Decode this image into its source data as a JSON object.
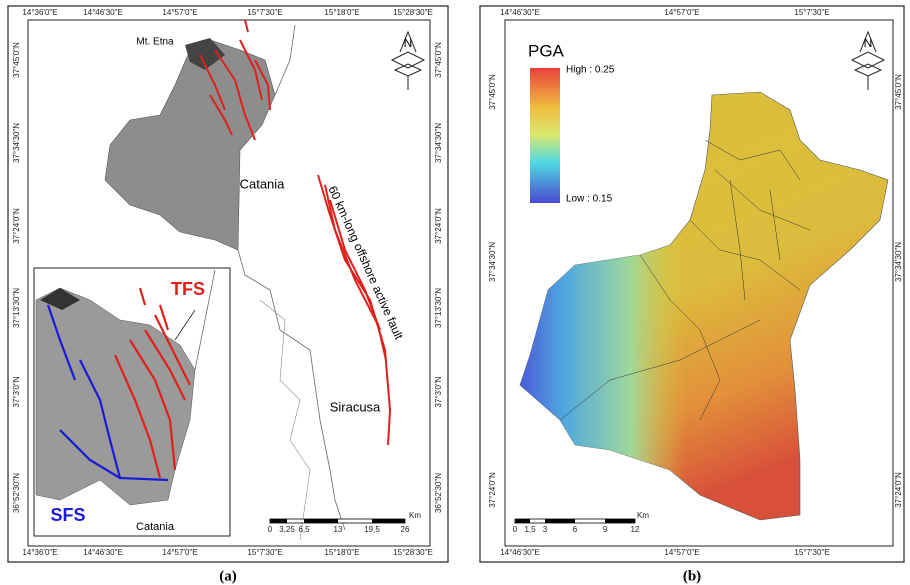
{
  "panels": [
    {
      "caption": "(a)",
      "lon_labels": [
        "14°36'0\"E",
        "14°46'30\"E",
        "14°57'0\"E",
        "15°7'30\"E",
        "15°18'0\"E",
        "15°28'30\"E"
      ],
      "lat_labels": [
        "37°45'0\"N",
        "37°34'30\"N",
        "37°24'0\"N",
        "37°13'30\"N",
        "37°3'0\"N",
        "36°52'30\"N"
      ],
      "labels": {
        "etna": "Mt. Etna",
        "catania": "Catania",
        "fault": "60 km-long offshore active fault",
        "siracusa": "Siracusa",
        "tfs": "TFS",
        "sfs": "SFS",
        "inset_catania": "Catania"
      },
      "scale_labels": [
        "0",
        "3,25",
        "6,5",
        "13",
        "19,5",
        "26"
      ],
      "scale_unit": "Km"
    },
    {
      "caption": "(b)",
      "lon_labels": [
        "14°46'30\"E",
        "14°57'0\"E",
        "15°7'30\"E"
      ],
      "lat_labels": [
        "37°45'0\"N",
        "37°34'30\"N",
        "37°24'0\"N"
      ],
      "legend": {
        "title": "PGA",
        "high": "High : 0.25",
        "low": "Low : 0.15"
      },
      "scale_labels": [
        "0",
        "1,5",
        "3",
        "6",
        "9",
        "12"
      ],
      "scale_unit": "Km"
    }
  ]
}
